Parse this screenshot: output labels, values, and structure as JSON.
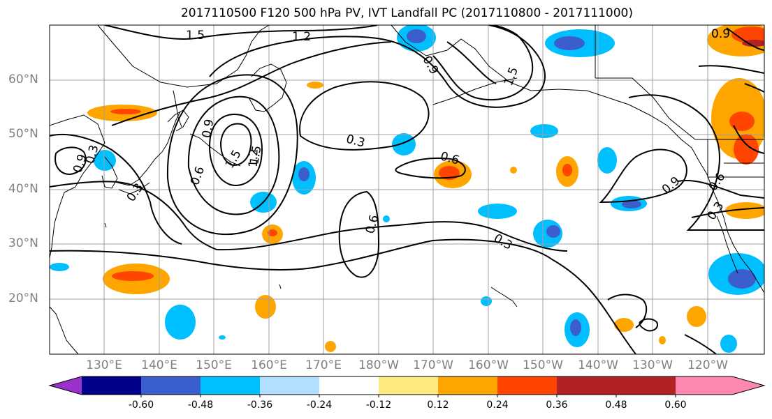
{
  "title": "2017110500 F120 500 hPa PV, IVT Landfall PC (2017110800 - 2017111000)",
  "lat_labels": [
    "60°N",
    "50°N",
    "40°N",
    "30°N",
    "20°N"
  ],
  "lon_labels": [
    "130°E",
    "140°E",
    "150°E",
    "160°E",
    "170°E",
    "180°W",
    "170°W",
    "160°W",
    "150°W",
    "140°W",
    "130°W",
    "120°W"
  ],
  "colorbar": {
    "colors": [
      "#9932cc",
      "#00008b",
      "#3a5fcd",
      "#00bfff",
      "#b2dfff",
      "#ffffff",
      "#ffea80",
      "#ffa500",
      "#ff4500",
      "#b22222",
      "#ff88b0"
    ],
    "tick_labels": [
      "-0.60",
      "-0.48",
      "-0.36",
      "-0.24",
      "-0.12",
      "0.12",
      "0.24",
      "0.36",
      "0.48",
      "0.60"
    ]
  },
  "contour_labels": [
    "1.5",
    "1.2",
    "0.9",
    "1.5",
    "1.5",
    "0.9",
    "0.3",
    "0.6",
    "0.3",
    "1.5",
    "1.2",
    "0.9",
    "0.9",
    "0.3",
    "0.6",
    "0.3",
    "0.6",
    "0.6",
    "0.9",
    "0.3"
  ]
}
